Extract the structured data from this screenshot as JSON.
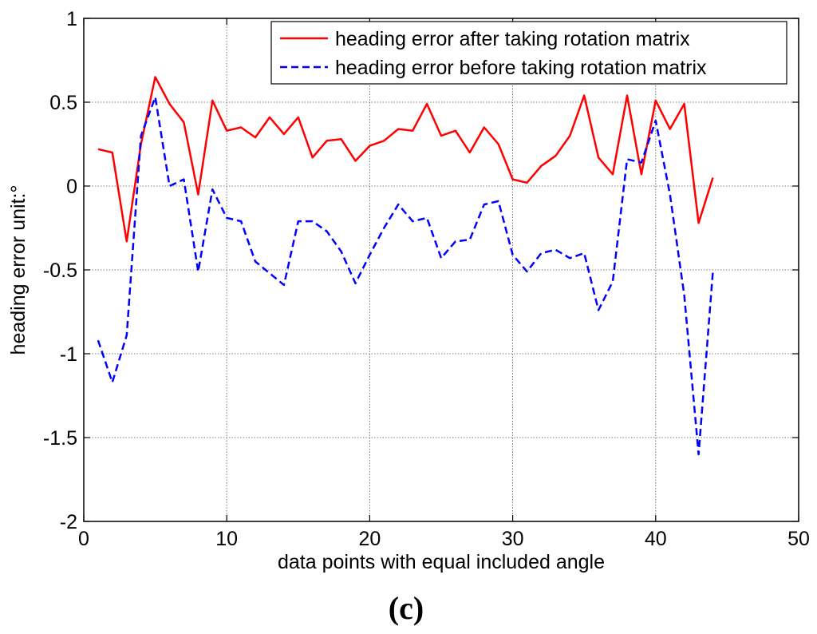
{
  "chart_data": {
    "type": "line",
    "xlabel": "data points with equal included angle",
    "ylabel": "heading error unit:°",
    "xlim": [
      0,
      50
    ],
    "ylim": [
      -2,
      1
    ],
    "xticks": [
      0,
      10,
      20,
      30,
      40,
      50
    ],
    "yticks": [
      -2,
      -1.5,
      -1,
      -0.5,
      0,
      0.5,
      1
    ],
    "xtick_labels": [
      "0",
      "10",
      "20",
      "30",
      "40",
      "50"
    ],
    "ytick_labels": [
      "-2",
      "-1.5",
      "-1",
      "-0.5",
      "0",
      "0.5",
      "1"
    ],
    "grid": true,
    "legend_position": "top-right",
    "x": [
      1,
      2,
      3,
      4,
      5,
      6,
      7,
      8,
      9,
      10,
      11,
      12,
      13,
      14,
      15,
      16,
      17,
      18,
      19,
      20,
      21,
      22,
      23,
      24,
      25,
      26,
      27,
      28,
      29,
      30,
      31,
      32,
      33,
      34,
      35,
      36,
      37,
      38,
      39,
      40,
      41,
      42,
      43,
      44
    ],
    "series": [
      {
        "name": "heading error after taking rotation matrix",
        "color": "#ff0000",
        "style": "solid",
        "values": [
          0.22,
          0.2,
          -0.33,
          0.25,
          0.65,
          0.49,
          0.38,
          -0.05,
          0.51,
          0.33,
          0.35,
          0.29,
          0.41,
          0.31,
          0.41,
          0.17,
          0.27,
          0.28,
          0.15,
          0.24,
          0.27,
          0.34,
          0.33,
          0.49,
          0.3,
          0.33,
          0.2,
          0.35,
          0.25,
          0.04,
          0.02,
          0.12,
          0.18,
          0.3,
          0.54,
          0.17,
          0.07,
          0.54,
          0.07,
          0.51,
          0.34,
          0.49,
          -0.22,
          0.05
        ]
      },
      {
        "name": "heading error before taking rotation matrix",
        "color": "#0000ff",
        "style": "dashed",
        "values": [
          -0.92,
          -1.17,
          -0.89,
          0.3,
          0.53,
          0.0,
          0.04,
          -0.51,
          -0.02,
          -0.19,
          -0.21,
          -0.45,
          -0.52,
          -0.59,
          -0.21,
          -0.21,
          -0.27,
          -0.39,
          -0.58,
          -0.41,
          -0.25,
          -0.11,
          -0.21,
          -0.19,
          -0.43,
          -0.33,
          -0.32,
          -0.11,
          -0.09,
          -0.41,
          -0.51,
          -0.4,
          -0.38,
          -0.43,
          -0.4,
          -0.74,
          -0.57,
          0.16,
          0.14,
          0.39,
          -0.05,
          -0.65,
          -1.6,
          -0.51
        ]
      }
    ]
  },
  "panel_label": "(c)"
}
